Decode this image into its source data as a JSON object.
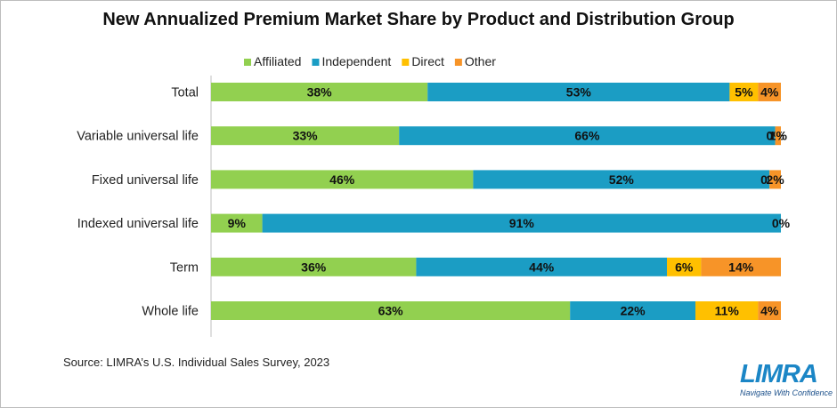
{
  "chart_data": {
    "type": "bar",
    "orientation": "horizontal",
    "stacked": true,
    "title": "New Annualized Premium Market Share by Product and Distribution Group",
    "categories": [
      "Total",
      "Variable universal life",
      "Fixed universal life",
      "Indexed universal life",
      "Term",
      "Whole life"
    ],
    "series": [
      {
        "name": "Affiliated",
        "color": "#92d050",
        "values": [
          38,
          33,
          46,
          9,
          36,
          63
        ],
        "labels": [
          "38%",
          "33%",
          "46%",
          "9%",
          "36%",
          "63%"
        ]
      },
      {
        "name": "Independent",
        "color": "#1b9dc4",
        "values": [
          53,
          66,
          52,
          91,
          44,
          22
        ],
        "labels": [
          "53%",
          "66%",
          "52%",
          "91%",
          "44%",
          "22%"
        ]
      },
      {
        "name": "Direct",
        "color": "#ffc000",
        "values": [
          5,
          0,
          0,
          0,
          6,
          11
        ],
        "labels": [
          "5%",
          "0%",
          "0%",
          "0%",
          "6%",
          "11%"
        ]
      },
      {
        "name": "Other",
        "color": "#f79428",
        "values": [
          4,
          1,
          2,
          0,
          14,
          4
        ],
        "labels": [
          "4%",
          "1%",
          "2%",
          "",
          "14%",
          "4%"
        ]
      }
    ],
    "xlim": [
      0,
      100
    ],
    "legend_position": "top",
    "grid": false
  },
  "source": "Source: LIMRA’s U.S. Individual Sales Survey, 2023",
  "logo": {
    "word": "LIMRA",
    "tagline": "Navigate With Confidence"
  }
}
